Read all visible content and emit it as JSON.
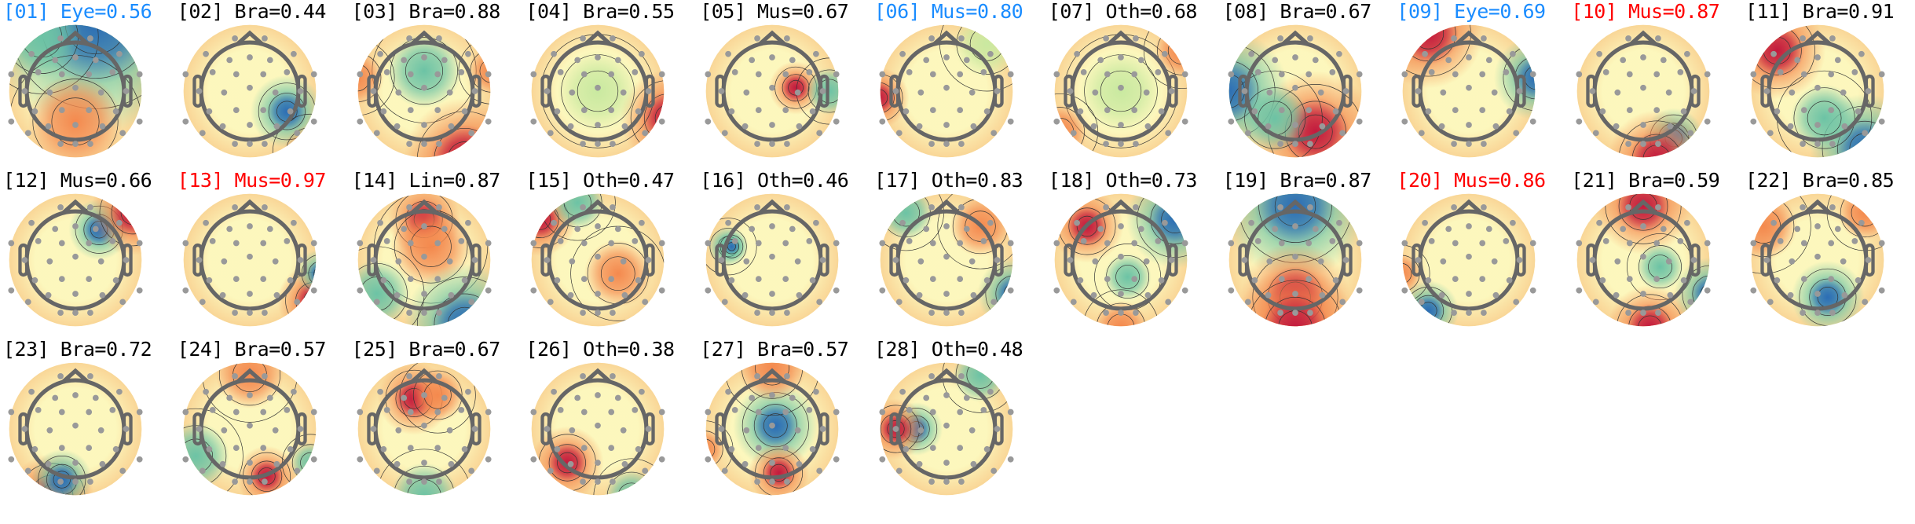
{
  "colors": {
    "default_title": "#000000",
    "eye_title": "#1a8cff",
    "muscle_title": "#ff0000",
    "head_outline": "#666666",
    "electrode": "#999999"
  },
  "chart_data": {
    "type": "heatmap",
    "subtype": "scalp-topomap-grid",
    "colormap": "Spectral (red-yellow-blue)",
    "components": [
      {
        "label": "[01] Eye=0.56",
        "index": "01",
        "class": "Eye",
        "score": 0.56,
        "title_color": "#1a8cff"
      },
      {
        "label": "[02] Bra=0.44",
        "index": "02",
        "class": "Bra",
        "score": 0.44,
        "title_color": "#000000"
      },
      {
        "label": "[03] Bra=0.88",
        "index": "03",
        "class": "Bra",
        "score": 0.88,
        "title_color": "#000000"
      },
      {
        "label": "[04] Bra=0.55",
        "index": "04",
        "class": "Bra",
        "score": 0.55,
        "title_color": "#000000"
      },
      {
        "label": "[05] Mus=0.67",
        "index": "05",
        "class": "Mus",
        "score": 0.67,
        "title_color": "#000000"
      },
      {
        "label": "[06] Mus=0.80",
        "index": "06",
        "class": "Mus",
        "score": 0.8,
        "title_color": "#1a8cff"
      },
      {
        "label": "[07] Oth=0.68",
        "index": "07",
        "class": "Oth",
        "score": 0.68,
        "title_color": "#000000"
      },
      {
        "label": "[08] Bra=0.67",
        "index": "08",
        "class": "Bra",
        "score": 0.67,
        "title_color": "#000000"
      },
      {
        "label": "[09] Eye=0.69",
        "index": "09",
        "class": "Eye",
        "score": 0.69,
        "title_color": "#1a8cff"
      },
      {
        "label": "[10] Mus=0.87",
        "index": "10",
        "class": "Mus",
        "score": 0.87,
        "title_color": "#ff0000"
      },
      {
        "label": "[11] Bra=0.91",
        "index": "11",
        "class": "Bra",
        "score": 0.91,
        "title_color": "#000000"
      },
      {
        "label": "[12] Mus=0.66",
        "index": "12",
        "class": "Mus",
        "score": 0.66,
        "title_color": "#000000"
      },
      {
        "label": "[13] Mus=0.97",
        "index": "13",
        "class": "Mus",
        "score": 0.97,
        "title_color": "#ff0000"
      },
      {
        "label": "[14] Lin=0.87",
        "index": "14",
        "class": "Lin",
        "score": 0.87,
        "title_color": "#000000"
      },
      {
        "label": "[15] Oth=0.47",
        "index": "15",
        "class": "Oth",
        "score": 0.47,
        "title_color": "#000000"
      },
      {
        "label": "[16] Oth=0.46",
        "index": "16",
        "class": "Oth",
        "score": 0.46,
        "title_color": "#000000"
      },
      {
        "label": "[17] Oth=0.83",
        "index": "17",
        "class": "Oth",
        "score": 0.83,
        "title_color": "#000000"
      },
      {
        "label": "[18] Oth=0.73",
        "index": "18",
        "class": "Oth",
        "score": 0.73,
        "title_color": "#000000"
      },
      {
        "label": "[19] Bra=0.87",
        "index": "19",
        "class": "Bra",
        "score": 0.87,
        "title_color": "#000000"
      },
      {
        "label": "[20] Mus=0.86",
        "index": "20",
        "class": "Mus",
        "score": 0.86,
        "title_color": "#ff0000"
      },
      {
        "label": "[21] Bra=0.59",
        "index": "21",
        "class": "Bra",
        "score": 0.59,
        "title_color": "#000000"
      },
      {
        "label": "[22] Bra=0.85",
        "index": "22",
        "class": "Bra",
        "score": 0.85,
        "title_color": "#000000"
      },
      {
        "label": "[23] Bra=0.72",
        "index": "23",
        "class": "Bra",
        "score": 0.72,
        "title_color": "#000000"
      },
      {
        "label": "[24] Bra=0.57",
        "index": "24",
        "class": "Bra",
        "score": 0.57,
        "title_color": "#000000"
      },
      {
        "label": "[25] Bra=0.67",
        "index": "25",
        "class": "Bra",
        "score": 0.67,
        "title_color": "#000000"
      },
      {
        "label": "[26] Oth=0.38",
        "index": "26",
        "class": "Oth",
        "score": 0.38,
        "title_color": "#000000"
      },
      {
        "label": "[27] Bra=0.57",
        "index": "27",
        "class": "Bra",
        "score": 0.57,
        "title_color": "#000000"
      },
      {
        "label": "[28] Oth=0.48",
        "index": "28",
        "class": "Oth",
        "score": 0.48,
        "title_color": "#000000"
      }
    ]
  }
}
